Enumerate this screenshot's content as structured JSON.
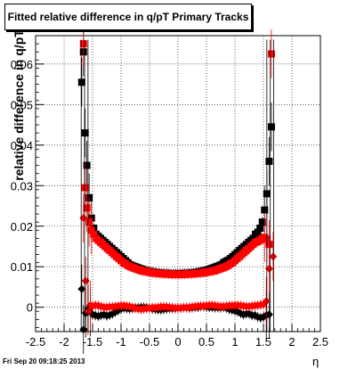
{
  "chart_data": {
    "type": "scatter",
    "title": "Fitted relative difference in q/pT  Primary Tracks",
    "xlabel": "η",
    "ylabel": "relative difference in q/pT",
    "xlim": [
      -2.5,
      2.5
    ],
    "ylim": [
      -0.006,
      0.067
    ],
    "xticks": [
      "-2.5",
      "-2",
      "-1.5",
      "-1",
      "-0.5",
      "0",
      "0.5",
      "1",
      "1.5",
      "2",
      "2.5"
    ],
    "yticks": [
      "0",
      "0.01",
      "0.02",
      "0.03",
      "0.04",
      "0.05",
      "0.06"
    ],
    "grid": true,
    "series": [
      {
        "marker": "square",
        "color": "#000000",
        "x": [
          -1.69,
          -1.66,
          -1.63,
          -1.6,
          -1.56,
          -1.52,
          -1.48,
          -1.44,
          -1.4,
          -1.36,
          -1.32,
          -1.28,
          -1.24,
          -1.2,
          -1.16,
          -1.12,
          -1.08,
          -1.04,
          -1.0,
          -0.96,
          -0.92,
          -0.88,
          -0.84,
          -0.8,
          -0.76,
          -0.72,
          -0.68,
          -0.64,
          -0.6,
          -0.56,
          -0.52,
          -0.48,
          -0.44,
          -0.4,
          -0.36,
          -0.32,
          -0.28,
          -0.24,
          -0.2,
          -0.16,
          -0.12,
          -0.08,
          -0.04,
          0.0,
          0.04,
          0.08,
          0.12,
          0.16,
          0.2,
          0.24,
          0.28,
          0.32,
          0.36,
          0.4,
          0.44,
          0.48,
          0.52,
          0.56,
          0.6,
          0.64,
          0.68,
          0.72,
          0.76,
          0.8,
          0.84,
          0.88,
          0.92,
          0.96,
          1.0,
          1.04,
          1.08,
          1.12,
          1.16,
          1.2,
          1.24,
          1.28,
          1.32,
          1.36,
          1.4,
          1.44,
          1.48,
          1.52,
          1.56,
          1.6,
          1.64
        ],
        "y": [
          0.0555,
          0.063,
          0.043,
          0.035,
          0.027,
          0.022,
          0.0195,
          0.018,
          0.0175,
          0.017,
          0.0165,
          0.016,
          0.0155,
          0.015,
          0.0145,
          0.014,
          0.0135,
          0.013,
          0.0125,
          0.012,
          0.0115,
          0.011,
          0.0105,
          0.0102,
          0.01,
          0.0098,
          0.0096,
          0.0094,
          0.0092,
          0.009,
          0.0089,
          0.0088,
          0.0087,
          0.0086,
          0.0085,
          0.0085,
          0.0084,
          0.0084,
          0.0084,
          0.0083,
          0.0083,
          0.0083,
          0.0083,
          0.0083,
          0.0083,
          0.0083,
          0.0084,
          0.0084,
          0.0084,
          0.0085,
          0.0085,
          0.0086,
          0.0087,
          0.0088,
          0.0089,
          0.009,
          0.0092,
          0.0094,
          0.0096,
          0.0098,
          0.01,
          0.0102,
          0.0105,
          0.011,
          0.0113,
          0.0116,
          0.012,
          0.0125,
          0.013,
          0.0135,
          0.014,
          0.0145,
          0.015,
          0.0155,
          0.016,
          0.0165,
          0.017,
          0.018,
          0.0185,
          0.0195,
          0.021,
          0.024,
          0.028,
          0.036,
          0.0445
        ]
      },
      {
        "marker": "square",
        "color": "#ff0000",
        "x": [
          -1.66,
          -1.63,
          -1.6,
          -1.56,
          -1.52,
          -1.48,
          -1.44,
          -1.4,
          -1.36,
          -1.32,
          -1.28,
          -1.24,
          -1.2,
          -1.16,
          -1.12,
          -1.08,
          -1.04,
          -1.0,
          -0.96,
          -0.92,
          -0.88,
          -0.84,
          -0.8,
          -0.76,
          -0.72,
          -0.68,
          -0.64,
          -0.6,
          -0.56,
          -0.52,
          -0.48,
          -0.44,
          -0.4,
          -0.36,
          -0.32,
          -0.28,
          -0.24,
          -0.2,
          -0.16,
          -0.12,
          -0.08,
          -0.04,
          0.0,
          0.04,
          0.08,
          0.12,
          0.16,
          0.2,
          0.24,
          0.28,
          0.32,
          0.36,
          0.4,
          0.44,
          0.48,
          0.52,
          0.56,
          0.6,
          0.64,
          0.68,
          0.72,
          0.76,
          0.8,
          0.84,
          0.88,
          0.92,
          0.96,
          1.0,
          1.04,
          1.08,
          1.12,
          1.16,
          1.2,
          1.24,
          1.28,
          1.32,
          1.36,
          1.4,
          1.44,
          1.48,
          1.52,
          1.56,
          1.6,
          1.64
        ],
        "y": [
          0.065,
          0.0295,
          0.0245,
          0.021,
          0.019,
          0.018,
          0.017,
          0.0165,
          0.016,
          0.0155,
          0.015,
          0.0145,
          0.014,
          0.0135,
          0.013,
          0.0125,
          0.012,
          0.0115,
          0.011,
          0.0107,
          0.0103,
          0.01,
          0.0098,
          0.0096,
          0.0094,
          0.0092,
          0.009,
          0.0089,
          0.0088,
          0.0087,
          0.0086,
          0.0085,
          0.0084,
          0.0084,
          0.0083,
          0.0083,
          0.0082,
          0.0082,
          0.0082,
          0.0081,
          0.0081,
          0.0081,
          0.0081,
          0.0081,
          0.0081,
          0.0081,
          0.0082,
          0.0082,
          0.0082,
          0.0083,
          0.0083,
          0.0084,
          0.0084,
          0.0085,
          0.0086,
          0.0087,
          0.0088,
          0.0089,
          0.009,
          0.0092,
          0.0094,
          0.0096,
          0.0098,
          0.01,
          0.0103,
          0.0107,
          0.011,
          0.0115,
          0.012,
          0.0125,
          0.013,
          0.0135,
          0.014,
          0.0145,
          0.015,
          0.0155,
          0.016,
          0.0162,
          0.0165,
          0.017,
          0.0172,
          0.0168,
          0.0155,
          0.0625
        ]
      },
      {
        "marker": "diamond",
        "color": "#000000",
        "x": [
          -1.69,
          -1.66,
          -1.62,
          -1.58,
          -1.54,
          -1.5,
          -1.45,
          -1.4,
          -1.35,
          -1.3,
          -1.25,
          -1.2,
          -1.15,
          -1.1,
          -1.05,
          -1.0,
          -0.95,
          -0.9,
          -0.85,
          -0.8,
          -0.75,
          -0.7,
          -0.65,
          -0.6,
          -0.55,
          -0.5,
          -0.45,
          -0.4,
          -0.35,
          -0.3,
          -0.25,
          -0.2,
          -0.15,
          -0.1,
          -0.05,
          0.0,
          0.05,
          0.1,
          0.15,
          0.2,
          0.25,
          0.3,
          0.35,
          0.4,
          0.45,
          0.5,
          0.55,
          0.6,
          0.65,
          0.7,
          0.75,
          0.8,
          0.85,
          0.9,
          0.95,
          1.0,
          1.05,
          1.1,
          1.15,
          1.2,
          1.25,
          1.3,
          1.35,
          1.4,
          1.45,
          1.5,
          1.55,
          1.6
        ],
        "y": [
          0.0045,
          -0.0055,
          -0.0015,
          -0.0005,
          -0.0012,
          -0.0018,
          -0.002,
          -0.0022,
          -0.002,
          -0.0018,
          -0.0021,
          -0.0019,
          -0.0016,
          -0.0012,
          -0.0008,
          -0.0004,
          -0.0002,
          -0.0003,
          -0.0004,
          -0.0003,
          -0.0001,
          -0.0001,
          0,
          0,
          -0.0001,
          -0.0002,
          -0.0004,
          -0.0005,
          -0.0006,
          -0.0006,
          -0.0005,
          -0.0004,
          -0.0003,
          -0.0003,
          -0.0003,
          -0.0002,
          -0.0002,
          -0.0001,
          -0.0001,
          -0.0002,
          -0.0001,
          0,
          0,
          0.0002,
          0.0002,
          0.0001,
          0,
          0,
          -0.0001,
          -0.0001,
          -0.0001,
          0,
          -0.0002,
          -0.0005,
          -0.0007,
          -0.0009,
          -0.0011,
          -0.0015,
          -0.0018,
          -0.0016,
          -0.0016,
          -0.002,
          -0.002,
          -0.0024,
          -0.0026,
          -0.0024,
          -0.002,
          -0.0018
        ]
      },
      {
        "marker": "diamond",
        "color": "#ff0000",
        "x": [
          -1.66,
          -1.62,
          -1.58,
          -1.54,
          -1.5,
          -1.45,
          -1.4,
          -1.35,
          -1.3,
          -1.25,
          -1.2,
          -1.15,
          -1.1,
          -1.05,
          -1.0,
          -0.95,
          -0.9,
          -0.85,
          -0.8,
          -0.75,
          -0.7,
          -0.65,
          -0.6,
          -0.55,
          -0.5,
          -0.45,
          -0.4,
          -0.35,
          -0.3,
          -0.25,
          -0.2,
          -0.15,
          -0.1,
          -0.05,
          0.0,
          0.05,
          0.1,
          0.15,
          0.2,
          0.25,
          0.3,
          0.35,
          0.4,
          0.45,
          0.5,
          0.55,
          0.6,
          0.65,
          0.7,
          0.75,
          0.8,
          0.85,
          0.9,
          0.95,
          1.0,
          1.05,
          1.1,
          1.15,
          1.2,
          1.25,
          1.3,
          1.35,
          1.4,
          1.45,
          1.5,
          1.55,
          1.6,
          1.67
        ],
        "y": [
          0.022,
          0.0065,
          -0.001,
          0.0005,
          0.0003,
          0.0005,
          0.0004,
          0.0002,
          0.0,
          0.0,
          0.0001,
          0.0001,
          0.0002,
          0.0003,
          0.0004,
          0.0004,
          0.0003,
          0.0002,
          0.0,
          -0.0003,
          -0.0004,
          -0.0005,
          -0.0004,
          -0.0003,
          -0.0002,
          -0.0001,
          -0.0001,
          0.0,
          0.0001,
          0.0001,
          0.0001,
          0.0,
          -0.0001,
          -0.0002,
          -0.0002,
          -0.0002,
          -0.0001,
          -0.0001,
          0.0,
          0.0001,
          0.0002,
          0.0003,
          0.0003,
          0.0003,
          0.0004,
          0.0005,
          0.0005,
          0.0004,
          0.0003,
          0.0002,
          0.0002,
          0.0003,
          0.0004,
          0.0004,
          0.0005,
          0.0005,
          0.0004,
          0.0003,
          0.0002,
          0.0002,
          0.0003,
          0.0004,
          0.0005,
          0.0006,
          0.0007,
          0.0015,
          0.0095,
          0.0125
        ]
      }
    ]
  },
  "timestamp": "Fri Sep 20 09:18:25 2013"
}
